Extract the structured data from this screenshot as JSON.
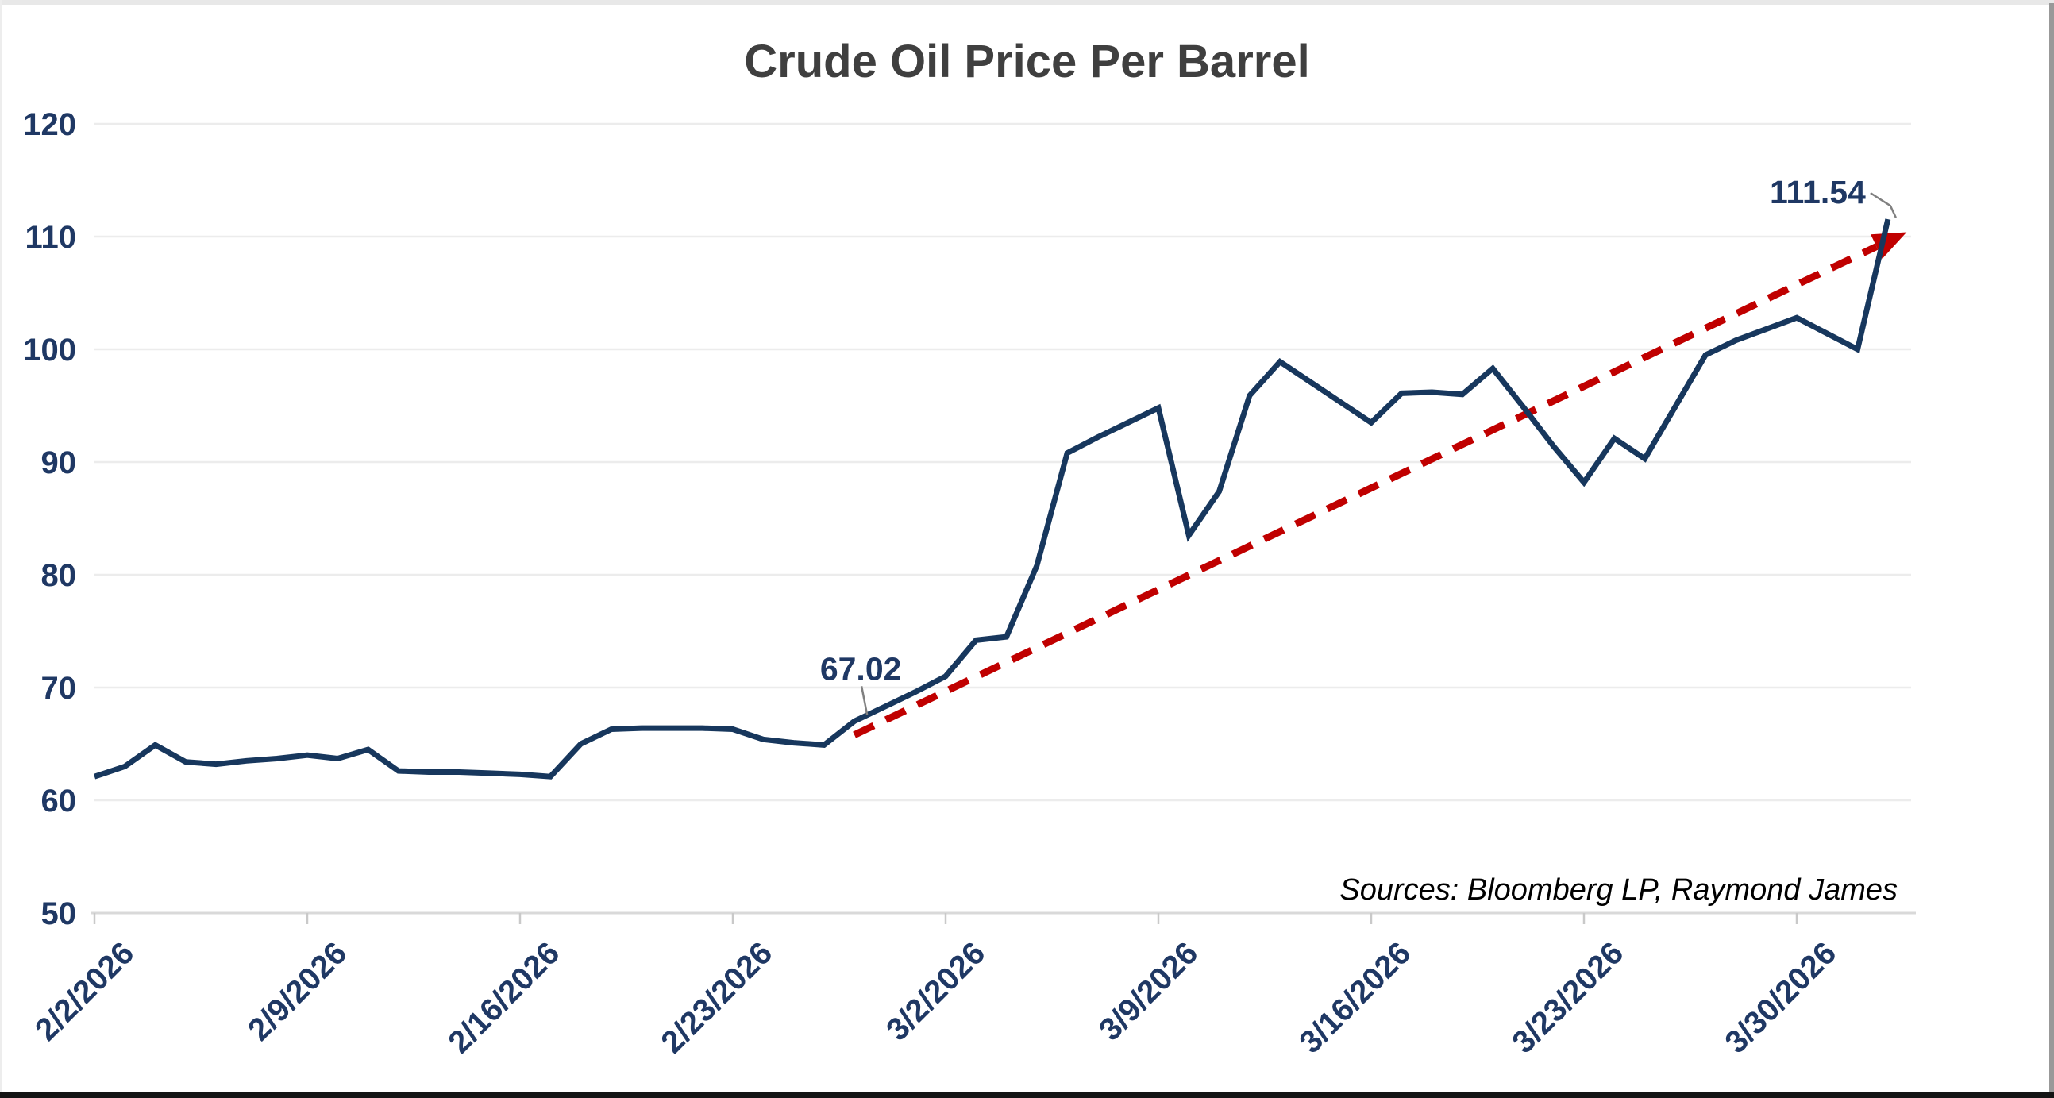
{
  "window": {
    "top_strip_color": "#e8e8e8",
    "right_bar_color": "#999999",
    "bottom_bar_color": "#141414"
  },
  "chart": {
    "title": "Crude Oil Price Per Barrel",
    "source_note": "Sources: Bloomberg LP, Raymond James",
    "colors": {
      "line": "#17375d",
      "trend": "#c00000",
      "axis_label": "#1f3864",
      "title_text": "#3f3f3f",
      "gridline": "#ececec",
      "axis_line": "#d9d9d9",
      "tick": "#c9c9c9",
      "leader": "#808080"
    },
    "y_axis": {
      "min": 50,
      "max": 120,
      "step": 10,
      "ticks": [
        120,
        110,
        100,
        90,
        80,
        70,
        60,
        50
      ]
    },
    "x_axis": {
      "tick_labels": [
        "2/2/2026",
        "2/9/2026",
        "2/16/2026",
        "2/23/2026",
        "3/2/2026",
        "3/9/2026",
        "3/16/2026",
        "3/23/2026",
        "3/30/2026"
      ],
      "tick_interval_days": 7
    }
  },
  "chart_data": {
    "type": "line",
    "title": "Crude Oil Price Per Barrel",
    "xlabel": "",
    "ylabel": "",
    "ylim": [
      50,
      120
    ],
    "grid": "horizontal",
    "legend": "none",
    "x": [
      "2/2/2026",
      "2/3/2026",
      "2/4/2026",
      "2/5/2026",
      "2/6/2026",
      "2/7/2026",
      "2/8/2026",
      "2/9/2026",
      "2/10/2026",
      "2/11/2026",
      "2/12/2026",
      "2/13/2026",
      "2/14/2026",
      "2/15/2026",
      "2/16/2026",
      "2/17/2026",
      "2/18/2026",
      "2/19/2026",
      "2/20/2026",
      "2/21/2026",
      "2/22/2026",
      "2/23/2026",
      "2/24/2026",
      "2/25/2026",
      "2/26/2026",
      "2/27/2026",
      "2/28/2026",
      "3/1/2026",
      "3/2/2026",
      "3/3/2026",
      "3/4/2026",
      "3/5/2026",
      "3/6/2026",
      "3/7/2026",
      "3/8/2026",
      "3/9/2026",
      "3/10/2026",
      "3/11/2026",
      "3/12/2026",
      "3/13/2026",
      "3/14/2026",
      "3/15/2026",
      "3/16/2026",
      "3/17/2026",
      "3/18/2026",
      "3/19/2026",
      "3/20/2026",
      "3/21/2026",
      "3/22/2026",
      "3/23/2026",
      "3/24/2026",
      "3/25/2026",
      "3/26/2026",
      "3/27/2026",
      "3/28/2026",
      "3/29/2026",
      "3/30/2026",
      "3/31/2026",
      "4/1/2026",
      "4/2/2026"
    ],
    "series": [
      {
        "name": "Crude Oil Price Per Barrel",
        "color": "#17375d",
        "values": [
          62.1,
          63.0,
          64.9,
          63.4,
          63.2,
          63.5,
          63.7,
          64.0,
          63.7,
          64.5,
          62.6,
          62.5,
          62.5,
          62.4,
          62.3,
          62.1,
          65.0,
          66.3,
          66.4,
          66.4,
          66.4,
          66.3,
          65.4,
          65.1,
          64.9,
          67.02,
          68.3,
          69.6,
          71.0,
          74.2,
          74.5,
          80.8,
          90.8,
          92.2,
          93.5,
          94.8,
          83.5,
          87.4,
          95.9,
          98.9,
          97.1,
          95.3,
          93.5,
          96.1,
          96.2,
          96.0,
          98.3,
          94.9,
          91.4,
          88.2,
          92.1,
          90.3,
          94.9,
          99.5,
          100.8,
          101.8,
          102.8,
          101.4,
          100.0,
          111.54
        ]
      }
    ],
    "trend_line": {
      "style": "dashed",
      "color": "#c00000",
      "arrow": true,
      "start": {
        "date": "2/27/2026",
        "value": 65.8
      },
      "end": {
        "date": "4/2/2026",
        "value": 109.6
      }
    },
    "annotations": [
      {
        "date": "2/27/2026",
        "value": 67.02,
        "label": "67.02"
      },
      {
        "date": "4/2/2026",
        "value": 111.54,
        "label": "111.54"
      }
    ]
  }
}
